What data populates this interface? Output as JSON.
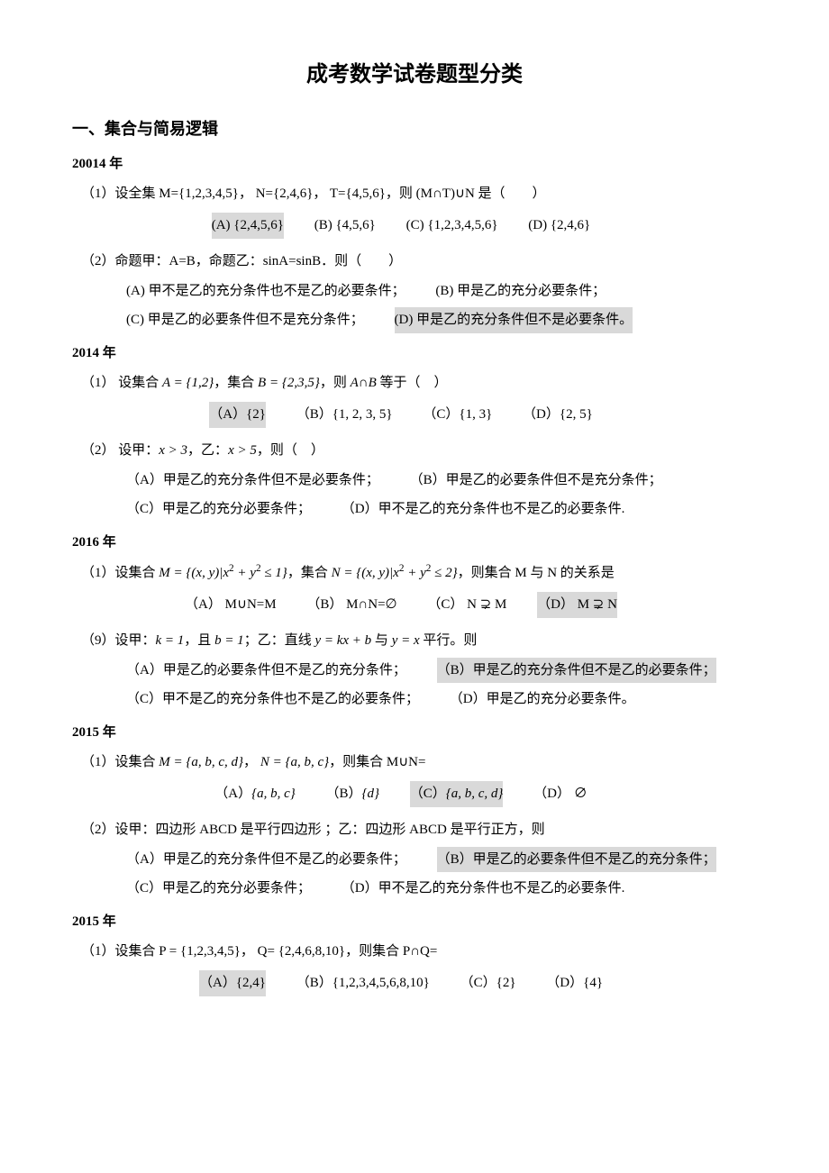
{
  "title": "成考数学试卷题型分类",
  "section1": "一、集合与简易逻辑",
  "g1": {
    "year": "20014 年",
    "q1": {
      "stem": "（1）设全集 M={1,2,3,4,5}，  N={2,4,6}， T={4,5,6}，则 (M∩T)∪N 是（　　）",
      "A": "(A) {2,4,5,6}",
      "B": "(B) {4,5,6}",
      "C": "(C) {1,2,3,4,5,6}",
      "D": "(D) {2,4,6}"
    },
    "q2": {
      "stem": "（2）命题甲：A=B，命题乙：sinA=sinB．则（　　）",
      "A": "(A) 甲不是乙的充分条件也不是乙的必要条件；",
      "B": "(B) 甲是乙的充分必要条件；",
      "C": "(C) 甲是乙的必要条件但不是充分条件；",
      "D": "(D) 甲是乙的充分条件但不是必要条件。"
    }
  },
  "g2": {
    "year": "2014 年",
    "q1": {
      "stem_a": "（1） 设集合 ",
      "stem_b": "A = {1,2}",
      "stem_c": "，集合 ",
      "stem_d": "B = {2,3,5}",
      "stem_e": "，则 ",
      "stem_f": "A∩B",
      "stem_g": " 等于（　）",
      "A": "（A）{2}",
      "B": "（B）{1, 2, 3, 5}",
      "C": "（C）{1, 3}",
      "D": "（D）{2, 5}"
    },
    "q2": {
      "stem_a": "（2） 设甲：",
      "stem_b": "x > 3",
      "stem_c": "，乙：",
      "stem_d": "x > 5",
      "stem_e": "，则（　）",
      "A": "（A）甲是乙的充分条件但不是必要条件；",
      "B": "（B）甲是乙的必要条件但不是充分条件；",
      "C": "（C）甲是乙的充分必要条件；",
      "D": "（D）甲不是乙的充分条件也不是乙的必要条件."
    }
  },
  "g3": {
    "year": "2016 年",
    "q1": {
      "stem_a": "（1）设集合 ",
      "stem_b": "M = {(x, y)|x² + y² ≤ 1}",
      "stem_c": "，集合 ",
      "stem_d": "N = {(x, y)|x² + y² ≤ 2}",
      "stem_e": "，则集合 M 与 N 的关系是",
      "A": "（A） M∪N=M",
      "B": "（B） M∩N=∅",
      "C": "（C） N ⊋ M",
      "D": "（D） M ⊋ N"
    },
    "q9": {
      "stem_a": "（9）设甲：",
      "stem_b": "k = 1",
      "stem_c": "，且  ",
      "stem_d": "b = 1",
      "stem_e": "；乙：直线 ",
      "stem_f": "y = kx + b",
      "stem_g": " 与 ",
      "stem_h": "y = x",
      "stem_i": " 平行。则",
      "A": "（A）甲是乙的必要条件但不是乙的充分条件；",
      "B": "（B）甲是乙的充分条件但不是乙的必要条件；",
      "C": "（C）甲不是乙的充分条件也不是乙的必要条件；",
      "D": "（D）甲是乙的充分必要条件。"
    }
  },
  "g4": {
    "year": "2015 年",
    "q1": {
      "stem_a": "（1）设集合 ",
      "stem_b": "M = {a, b, c, d}",
      "stem_c": "，  ",
      "stem_d": "N = {a, b, c}",
      "stem_e": "，则集合 M∪N=",
      "A": "（A）{a, b, c}",
      "B": "（B）{d}",
      "C": "（C）{a, b, c, d}",
      "D": "（D） ∅"
    },
    "q2": {
      "stem": "（2）设甲：四边形 ABCD 是平行四边形 ；乙：四边形 ABCD 是平行正方，则",
      "A": "（A）甲是乙的充分条件但不是乙的必要条件；",
      "B": "（B）甲是乙的必要条件但不是乙的充分条件；",
      "C": "（C）甲是乙的充分必要条件；",
      "D": "（D）甲不是乙的充分条件也不是乙的必要条件."
    }
  },
  "g5": {
    "year": "2015 年",
    "q1": {
      "stem_a": "（1）设集合 P = ",
      "stem_b": "{1,2,3,4,5}",
      "stem_c": "， Q= ",
      "stem_d": "{2,4,6,8,10}",
      "stem_e": "，则集合 P∩Q=",
      "A": "（A）{2,4}",
      "B": "（B）{1,2,3,4,5,6,8,10}",
      "C": "（C）{2}",
      "D": "（D）{4}"
    }
  }
}
